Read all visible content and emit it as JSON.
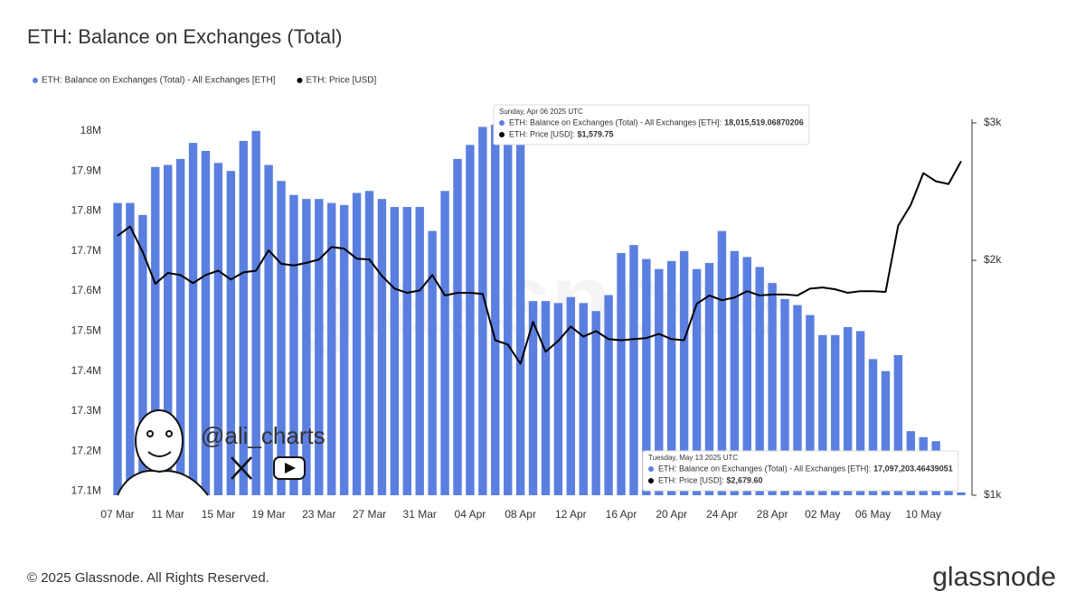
{
  "chart_data": {
    "type": "bar",
    "title": "ETH: Balance on Exchanges (Total)",
    "categories": [
      "07 Mar",
      null,
      null,
      null,
      "11 Mar",
      null,
      null,
      null,
      "15 Mar",
      null,
      null,
      null,
      "19 Mar",
      null,
      null,
      null,
      "23 Mar",
      null,
      null,
      null,
      "27 Mar",
      null,
      null,
      null,
      "31 Mar",
      null,
      null,
      null,
      "04 Apr",
      null,
      null,
      null,
      "08 Apr",
      null,
      null,
      null,
      "12 Apr",
      null,
      null,
      null,
      "16 Apr",
      null,
      null,
      null,
      "20 Apr",
      null,
      null,
      null,
      "24 Apr",
      null,
      null,
      null,
      "28 Apr",
      null,
      null,
      null,
      "02 May",
      null,
      null,
      null,
      "06 May",
      null,
      null,
      null,
      "10 May",
      null,
      null,
      null
    ],
    "series": [
      {
        "name": "ETH: Balance on Exchanges (Total) - All Exchanges [ETH]",
        "color": "#5b7fe0",
        "type": "bar",
        "values": [
          17820000,
          17820000,
          17790000,
          17910000,
          17915000,
          17930000,
          17970000,
          17950000,
          17920000,
          17900000,
          17975000,
          18000000,
          17915000,
          17875000,
          17840000,
          17830000,
          17830000,
          17820000,
          17815000,
          17845000,
          17850000,
          17830000,
          17810000,
          17810000,
          17810000,
          17750000,
          17850000,
          17930000,
          17965000,
          18010000,
          18015519.06870206,
          17990000,
          17970000,
          17575000,
          17575000,
          17570000,
          17585000,
          17570000,
          17550000,
          17590000,
          17695000,
          17715000,
          17680000,
          17655000,
          17675000,
          17700000,
          17655000,
          17670000,
          17750000,
          17700000,
          17685000,
          17660000,
          17620000,
          17580000,
          17565000,
          17540000,
          17490000,
          17490000,
          17510000,
          17500000,
          17430000,
          17400000,
          17440000,
          17250000,
          17235000,
          17225000,
          17160000,
          17097203.46439051
        ]
      },
      {
        "name": "ETH: Price [USD]",
        "color": "#000000",
        "type": "line",
        "axis": "y2",
        "values": [
          2150,
          2210,
          2050,
          1866,
          1927,
          1915,
          1870,
          1915,
          1940,
          1890,
          1930,
          1940,
          2060,
          1980,
          1970,
          1985,
          2005,
          2080,
          2070,
          2010,
          2005,
          1910,
          1840,
          1817,
          1830,
          1915,
          1803,
          1817,
          1817,
          1811,
          1579.75,
          1560,
          1474,
          1668,
          1527,
          1577,
          1645,
          1597,
          1623,
          1585,
          1580,
          1585,
          1590,
          1610,
          1585,
          1580,
          1759,
          1803,
          1778,
          1792,
          1826,
          1803,
          1808,
          1808,
          1803,
          1840,
          1846,
          1836,
          1817,
          1826,
          1826,
          1822,
          2215,
          2355,
          2587,
          2525,
          2505,
          2679.6
        ]
      }
    ],
    "ylim": [
      17090000,
      18020000
    ],
    "yticks": [
      {
        "value": 17100000,
        "label": "17.1M"
      },
      {
        "value": 17200000,
        "label": "17.2M"
      },
      {
        "value": 17300000,
        "label": "17.3M"
      },
      {
        "value": 17400000,
        "label": "17.4M"
      },
      {
        "value": 17500000,
        "label": "17.5M"
      },
      {
        "value": 17600000,
        "label": "17.6M"
      },
      {
        "value": 17700000,
        "label": "17.7M"
      },
      {
        "value": 17800000,
        "label": "17.8M"
      },
      {
        "value": 17900000,
        "label": "17.9M"
      },
      {
        "value": 18000000,
        "label": "18M"
      }
    ],
    "y2lim": [
      1000,
      3000
    ],
    "y2scale": "log",
    "y2ticks": [
      {
        "value": 1000,
        "label": "$1k"
      },
      {
        "value": 2000,
        "label": "$2k"
      },
      {
        "value": 3000,
        "label": "$3k"
      }
    ],
    "grid": false,
    "legend": "top-left",
    "tooltips": [
      {
        "title": "Sunday, Apr 06 2025 UTC",
        "items": [
          {
            "label": "ETH: Balance on Exchanges (Total) - All Exchanges [ETH]:",
            "value": "18,015,519.06870206"
          },
          {
            "label": "ETH: Price [USD]:",
            "value": "$1,579.75"
          }
        ]
      },
      {
        "title": "Tuesday, May 13 2025 UTC",
        "items": [
          {
            "label": "ETH: Balance on Exchanges (Total) - All Exchanges [ETH]:",
            "value": "17,097,203.46439051"
          },
          {
            "label": "ETH: Price [USD]:",
            "value": "$2,679.60"
          }
        ]
      }
    ],
    "watermark": "glassnode",
    "handle": "@ali_charts",
    "footer": "© 2025 Glassnode. All Rights Reserved.",
    "logo": "glassnode"
  }
}
